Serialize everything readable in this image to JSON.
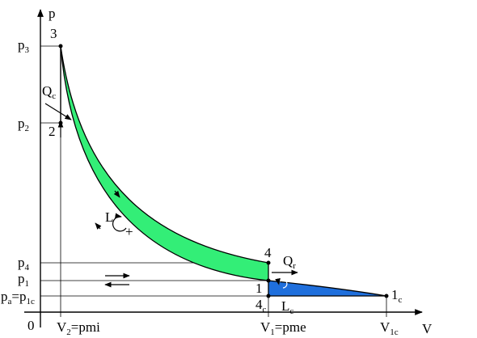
{
  "axes": {
    "origin": "0",
    "y_axis": "p",
    "x_axis": "V"
  },
  "y_labels": [
    [
      "p",
      "3"
    ],
    [
      "p",
      "2"
    ],
    [
      "p",
      "4"
    ],
    [
      "p",
      "1"
    ],
    [
      "p",
      "a",
      "=p",
      "1c"
    ]
  ],
  "x_labels": [
    [
      "V",
      "2",
      "=pmi"
    ],
    [
      "V",
      "1",
      "=pme"
    ],
    [
      "V",
      "1c"
    ]
  ],
  "points": [
    [
      "3"
    ],
    [
      "2"
    ],
    [
      "4"
    ],
    [
      "1"
    ],
    [
      "4",
      "c"
    ],
    [
      "1",
      "c"
    ]
  ],
  "annotations": {
    "heat_in": [
      "Q",
      "c"
    ],
    "heat_out": [
      "Q",
      "r"
    ],
    "work": [
      "L"
    ],
    "work_sign": [
      "+"
    ],
    "pump_work": [
      "L",
      "c"
    ]
  }
}
